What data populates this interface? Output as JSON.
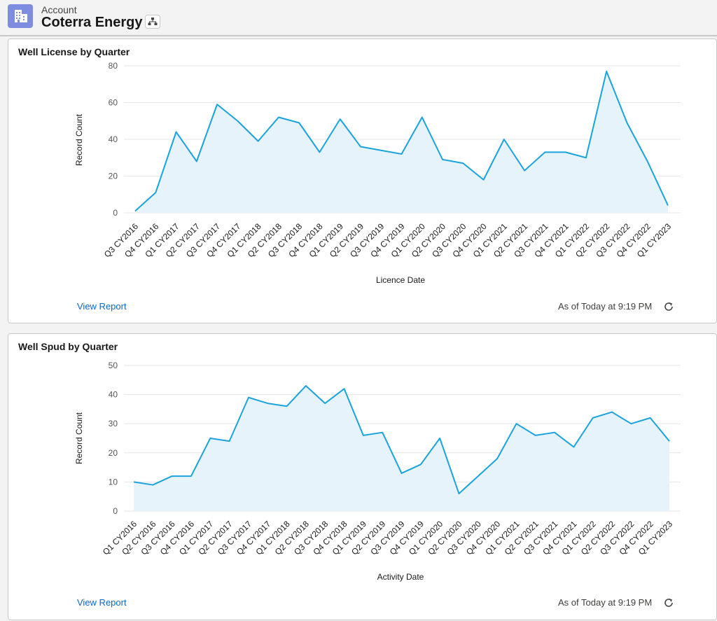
{
  "header": {
    "object_label": "Account",
    "record_name": "Coterra Energy",
    "icon": "account-building-icon",
    "hierarchy_icon": "hierarchy-icon",
    "accent": "#7f8de1"
  },
  "cards": [
    {
      "title": "Well License by Quarter",
      "view_report": "View Report",
      "as_of": "As of Today at 9:19 PM",
      "refresh_icon": "refresh-icon"
    },
    {
      "title": "Well Spud by Quarter",
      "view_report": "View Report",
      "as_of": "As of Today at 9:19 PM",
      "refresh_icon": "refresh-icon"
    }
  ],
  "chart_data": [
    {
      "type": "area",
      "title": "Well License by Quarter",
      "xlabel": "Licence Date",
      "ylabel": "Record Count",
      "ylim": [
        0,
        80
      ],
      "yticks": [
        0,
        20,
        40,
        60,
        80
      ],
      "grid": true,
      "color": "#1aa3dc",
      "categories": [
        "Q3 CY2016",
        "Q4 CY2016",
        "Q1 CY2017",
        "Q2 CY2017",
        "Q3 CY2017",
        "Q4 CY2017",
        "Q1 CY2018",
        "Q2 CY2018",
        "Q3 CY2018",
        "Q4 CY2018",
        "Q1 CY2019",
        "Q2 CY2019",
        "Q3 CY2019",
        "Q4 CY2019",
        "Q1 CY2020",
        "Q2 CY2020",
        "Q3 CY2020",
        "Q4 CY2020",
        "Q1 CY2021",
        "Q2 CY2021",
        "Q3 CY2021",
        "Q4 CY2021",
        "Q1 CY2022",
        "Q2 CY2022",
        "Q3 CY2022",
        "Q4 CY2022",
        "Q1 CY2023"
      ],
      "values": [
        1,
        11,
        44,
        28,
        59,
        50,
        39,
        52,
        49,
        33,
        51,
        36,
        34,
        32,
        52,
        29,
        27,
        18,
        40,
        23,
        33,
        33,
        30,
        77,
        49,
        28,
        4
      ]
    },
    {
      "type": "area",
      "title": "Well Spud by Quarter",
      "xlabel": "Activity Date",
      "ylabel": "Record Count",
      "ylim": [
        0,
        50
      ],
      "yticks": [
        0,
        10,
        20,
        30,
        40,
        50
      ],
      "grid": true,
      "color": "#1aa3dc",
      "categories": [
        "Q1 CY2016",
        "Q2 CY2016",
        "Q3 CY2016",
        "Q4 CY2016",
        "Q1 CY2017",
        "Q2 CY2017",
        "Q3 CY2017",
        "Q4 CY2017",
        "Q1 CY2018",
        "Q2 CY2018",
        "Q3 CY2018",
        "Q4 CY2018",
        "Q1 CY2019",
        "Q2 CY2019",
        "Q3 CY2019",
        "Q4 CY2019",
        "Q1 CY2020",
        "Q2 CY2020",
        "Q3 CY2020",
        "Q4 CY2020",
        "Q1 CY2021",
        "Q2 CY2021",
        "Q3 CY2021",
        "Q4 CY2021",
        "Q1 CY2022",
        "Q2 CY2022",
        "Q3 CY2022",
        "Q4 CY2022",
        "Q1 CY2023"
      ],
      "values": [
        10,
        9,
        12,
        12,
        25,
        24,
        39,
        37,
        36,
        43,
        37,
        42,
        26,
        27,
        13,
        16,
        25,
        6,
        12,
        18,
        30,
        26,
        27,
        22,
        32,
        34,
        30,
        32,
        24
      ]
    }
  ]
}
